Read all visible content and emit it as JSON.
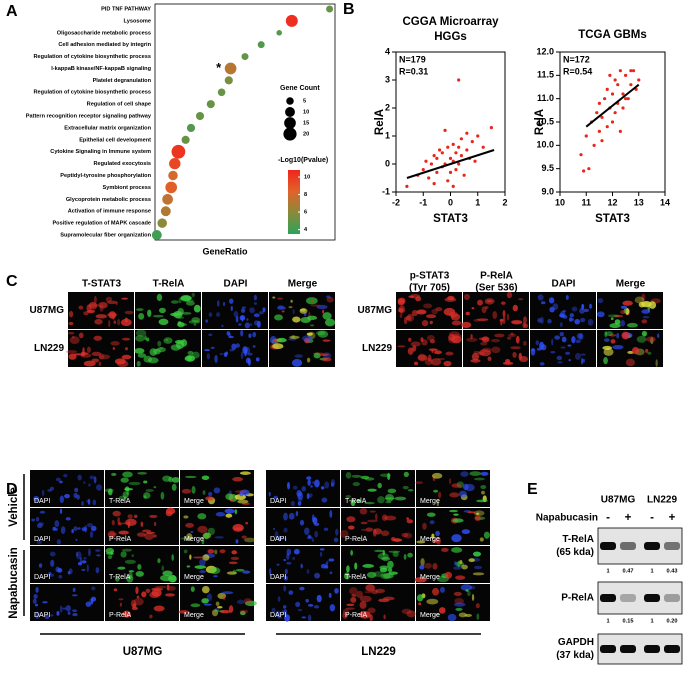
{
  "panel_labels": [
    "A",
    "B",
    "C",
    "D",
    "E"
  ],
  "chart_data": [
    {
      "type": "dot",
      "terms": [
        "PID TNF PATHWAY",
        "Lysosome",
        "Oligosaccharide metabolic process",
        "Cell adhesion mediated by integrin",
        "Regulation of cytokine biosynthetic process",
        "I-kappaB kinase/NF-kappaB signaling",
        "Platelet degranulation",
        "Regulation of cytokine biosynthetic process",
        "Regulation of cell shape",
        "Pattern recognition receptor signaling pathway",
        "Extracellular matrix organization",
        "Epithelial cell development",
        "Cytokine Signaling in Immune system",
        "Regulated exocytosis",
        "Peptidyl-tyrosine phosphorylation",
        "Symbiont process",
        "Glycoprotein metabolic process",
        "Activation of immune response",
        "Positive regulation of MAPK cascade",
        "Supramolecular fiber organization"
      ],
      "x": [
        0.97,
        0.76,
        0.69,
        0.59,
        0.5,
        0.42,
        0.41,
        0.37,
        0.31,
        0.25,
        0.2,
        0.17,
        0.13,
        0.11,
        0.1,
        0.09,
        0.07,
        0.06,
        0.04,
        0.01
      ],
      "xlim": [
        0,
        1
      ],
      "gene_count": [
        4,
        16,
        2,
        4,
        4,
        15,
        6,
        5,
        6,
        6,
        6,
        6,
        22,
        14,
        9,
        15,
        12,
        10,
        9,
        10
      ],
      "log10p": [
        5,
        10.5,
        4.5,
        4.5,
        5,
        7.2,
        5.5,
        5,
        5,
        5,
        4.5,
        5,
        10.2,
        9.5,
        8,
        8.5,
        7.5,
        7,
        6,
        4
      ],
      "highlight": 5,
      "highlight_mark": "*",
      "highlight_color": "#e8261c",
      "xlabel": "GeneRatio",
      "size_legend": {
        "title": "Gene Count",
        "values": [
          5,
          10,
          15,
          20
        ]
      },
      "color_legend": {
        "title": "-Log10(Pvalue)",
        "lim": [
          3.5,
          10.8
        ],
        "ticks": [
          10,
          8,
          6,
          4
        ],
        "colors": [
          "#2ba35a",
          "#8a8a3a",
          "#e0632a",
          "#f0261c"
        ]
      }
    },
    {
      "type": "scatter",
      "title": [
        "CGGA Microarray",
        "HGGs"
      ],
      "annotations": [
        "N=179",
        "R=0.31"
      ],
      "xlabel": "STAT3",
      "ylabel": "RelA",
      "xlim": [
        -2,
        2
      ],
      "xticks": [
        -2,
        -1,
        0,
        1,
        2
      ],
      "ylim": [
        -1,
        4
      ],
      "yticks": [
        -1,
        0,
        1,
        2,
        3,
        4
      ],
      "color": "#e8261c",
      "x": [
        -1.6,
        -1.2,
        -1.0,
        -0.9,
        -0.8,
        -0.7,
        -0.6,
        -0.5,
        -0.5,
        -0.4,
        -0.3,
        -0.3,
        -0.2,
        -0.1,
        -0.1,
        0.0,
        0.0,
        0.1,
        0.1,
        0.2,
        0.2,
        0.3,
        0.3,
        0.4,
        0.4,
        0.5,
        0.6,
        0.7,
        0.8,
        0.9,
        1.0,
        1.2,
        1.5,
        0.3,
        -0.6,
        0.6,
        -0.2,
        0.1
      ],
      "y": [
        -0.8,
        -0.4,
        -0.2,
        0.1,
        -0.5,
        0.0,
        0.3,
        -0.3,
        0.2,
        0.5,
        -0.1,
        0.4,
        0.0,
        -0.6,
        0.6,
        0.2,
        -0.3,
        0.1,
        0.7,
        -0.2,
        0.4,
        3.0,
        0.0,
        0.3,
        0.9,
        -0.4,
        0.5,
        0.2,
        0.8,
        0.1,
        1.0,
        0.6,
        1.3,
        0.6,
        -0.7,
        1.1,
        1.2,
        -0.8
      ],
      "fit": {
        "x": [
          -1.6,
          1.6
        ],
        "y": [
          -0.5,
          0.5
        ]
      }
    },
    {
      "type": "scatter",
      "title": [
        "TCGA GBMs"
      ],
      "annotations": [
        "N=172",
        "R=0.54"
      ],
      "xlabel": "STAT3",
      "ylabel": "RelA",
      "xlim": [
        10,
        14
      ],
      "xticks": [
        10,
        11,
        12,
        13,
        14
      ],
      "ylim": [
        9,
        12
      ],
      "yticks": [
        {
          "value": 9,
          "label": "9.0"
        },
        9.5,
        {
          "value": 10,
          "label": "10.0"
        },
        10.5,
        {
          "value": 11,
          "label": "11.0"
        },
        11.5,
        {
          "value": 12,
          "label": "12.0"
        }
      ],
      "color": "#e8261c",
      "x": [
        10.8,
        10.9,
        11.1,
        11.0,
        11.2,
        11.3,
        11.4,
        11.5,
        11.5,
        11.6,
        11.7,
        11.8,
        11.8,
        11.9,
        12.0,
        12.0,
        12.1,
        12.2,
        12.2,
        12.3,
        12.4,
        12.4,
        12.5,
        12.6,
        12.7,
        12.8,
        12.9,
        13.0,
        11.6,
        12.1,
        12.5,
        11.9,
        12.3,
        12.7
      ],
      "y": [
        9.8,
        9.45,
        9.5,
        10.2,
        10.5,
        10.0,
        10.7,
        10.3,
        10.9,
        10.6,
        11.0,
        10.4,
        11.2,
        10.8,
        11.1,
        10.5,
        11.4,
        10.9,
        11.3,
        11.6,
        10.8,
        11.1,
        11.5,
        11.0,
        11.3,
        11.6,
        11.2,
        11.4,
        10.1,
        10.7,
        11.0,
        11.5,
        10.3,
        11.6
      ],
      "fit": {
        "x": [
          11,
          13
        ],
        "y": [
          10.4,
          11.3
        ]
      }
    }
  ],
  "panel_c": {
    "groups": [
      {
        "headers": [
          [
            "T-STAT3"
          ],
          [
            "T-RelA"
          ],
          [
            "DAPI"
          ],
          [
            "Merge"
          ]
        ],
        "rows": [
          "U87MG",
          "LN229"
        ]
      },
      {
        "headers": [
          [
            "p-STAT3",
            "(Tyr 705)"
          ],
          [
            "P-RelA",
            "(Ser 536)"
          ],
          [
            "DAPI"
          ],
          [
            "Merge"
          ]
        ],
        "rows": [
          "U87MG",
          "LN229"
        ]
      }
    ]
  },
  "panel_d": {
    "conditions": [
      "Vehicle",
      "Napabucasin"
    ],
    "cell_lines": [
      "U87MG",
      "LN229"
    ],
    "channels": [
      [
        "DAPI",
        "T-RelA",
        "Merge"
      ],
      [
        "DAPI",
        "P-RelA",
        "Merge"
      ]
    ]
  },
  "panel_e": {
    "cell_lines": [
      "U87MG",
      "LN229"
    ],
    "treatment": "Napabucasin",
    "lanes": [
      "-",
      "+",
      "-",
      "+"
    ],
    "blots": [
      {
        "name": [
          "T-RelA",
          "(65 kda)"
        ],
        "quant": [
          "1",
          "0.47",
          "1",
          "0.43"
        ]
      },
      {
        "name": [
          "P-RelA"
        ],
        "quant": [
          "1",
          "0.15",
          "1",
          "0.20"
        ]
      },
      {
        "name": [
          "GAPDH",
          "(37 kda)"
        ]
      }
    ]
  }
}
